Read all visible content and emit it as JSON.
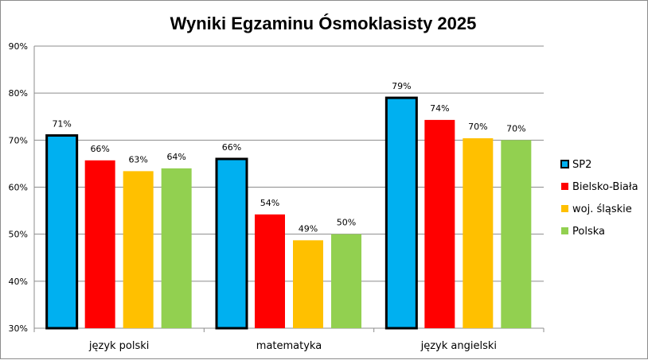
{
  "chart_data": {
    "type": "bar",
    "title": "Wyniki Egzaminu Ósmoklasisty 2025",
    "categories": [
      "język polski",
      "matematyka",
      "język angielski"
    ],
    "series": [
      {
        "name": "SP2",
        "color": "#00b0f0",
        "outlined": true,
        "values": [
          71,
          66,
          79
        ],
        "labels": [
          "71%",
          "66%",
          "79%"
        ]
      },
      {
        "name": "Bielsko-Biała",
        "color": "#ff0000",
        "outlined": false,
        "values": [
          65.7,
          54.2,
          74.3
        ],
        "labels": [
          "66%",
          "54%",
          "74%"
        ]
      },
      {
        "name": "woj. śląskie",
        "color": "#ffc000",
        "outlined": false,
        "values": [
          63.4,
          48.7,
          70.4
        ],
        "labels": [
          "63%",
          "49%",
          "70%"
        ]
      },
      {
        "name": "Polska",
        "color": "#92d050",
        "outlined": false,
        "values": [
          64,
          50,
          70
        ],
        "labels": [
          "64%",
          "50%",
          "70%"
        ]
      }
    ],
    "ylim": [
      30,
      90
    ],
    "yticks": [
      "30%",
      "40%",
      "50%",
      "60%",
      "70%",
      "80%",
      "90%"
    ],
    "ytick_values": [
      30,
      40,
      50,
      60,
      70,
      80,
      90
    ],
    "grid": true,
    "legend_position": "right"
  }
}
